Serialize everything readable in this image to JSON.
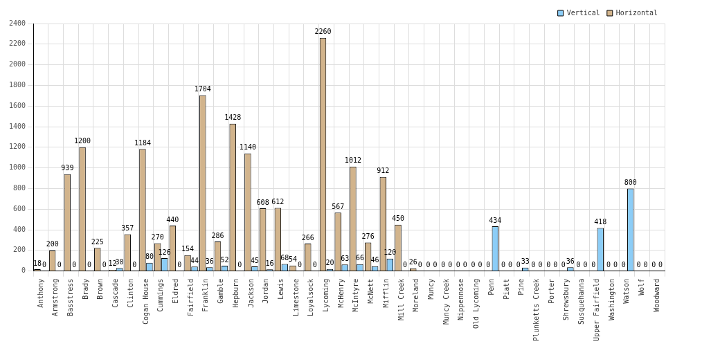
{
  "chart_data": {
    "type": "bar",
    "categories": [
      "Anthony",
      "Armstrong",
      "Basstress",
      "Brady",
      "Brown",
      "Cascade",
      "Clinton",
      "Cogan House",
      "Cummings",
      "Eldred",
      "Fairfield",
      "Franklin",
      "Gamble",
      "Hepburn",
      "Jackson",
      "Jordan",
      "Lewis",
      "Limestone",
      "Loyalsock",
      "Lycoming",
      "McHenry",
      "McIntyre",
      "McNett",
      "Mifflin",
      "Mill Creek",
      "Moreland",
      "Muncy",
      "Muncy Creek",
      "Nippennose",
      "Old Lycoming",
      "Penn",
      "Piatt",
      "Pine",
      "Plunketts Creek",
      "Porter",
      "Shrewsbury",
      "Susquehanna",
      "Upper Fairfield",
      "Washington",
      "Watson",
      "Wolf",
      "Woodward"
    ],
    "series": [
      {
        "name": "Vertical",
        "color": "#8ccdf7",
        "values": [
          0,
          0,
          0,
          0,
          0,
          30,
          0,
          80,
          126,
          0,
          44,
          36,
          52,
          0,
          45,
          16,
          68,
          0,
          0,
          20,
          63,
          66,
          46,
          120,
          0,
          0,
          0,
          0,
          0,
          0,
          434,
          0,
          33,
          0,
          0,
          36,
          0,
          418,
          0,
          800,
          0,
          0
        ]
      },
      {
        "name": "Horizontal",
        "color": "#d2b48c",
        "values": [
          18,
          200,
          939,
          1200,
          225,
          12,
          357,
          1184,
          270,
          440,
          154,
          1704,
          286,
          1428,
          1140,
          608,
          612,
          54,
          266,
          2260,
          567,
          1012,
          276,
          912,
          450,
          26,
          0,
          0,
          0,
          0,
          0,
          0,
          0,
          0,
          0,
          0,
          0,
          0,
          0,
          0,
          0,
          0
        ]
      }
    ],
    "ylim": [
      0,
      2400
    ],
    "yticks": [
      0,
      200,
      400,
      600,
      800,
      1000,
      1200,
      1400,
      1600,
      1800,
      2000,
      2200,
      2400
    ],
    "grid": true,
    "legend": "top right",
    "data_labels": true
  }
}
